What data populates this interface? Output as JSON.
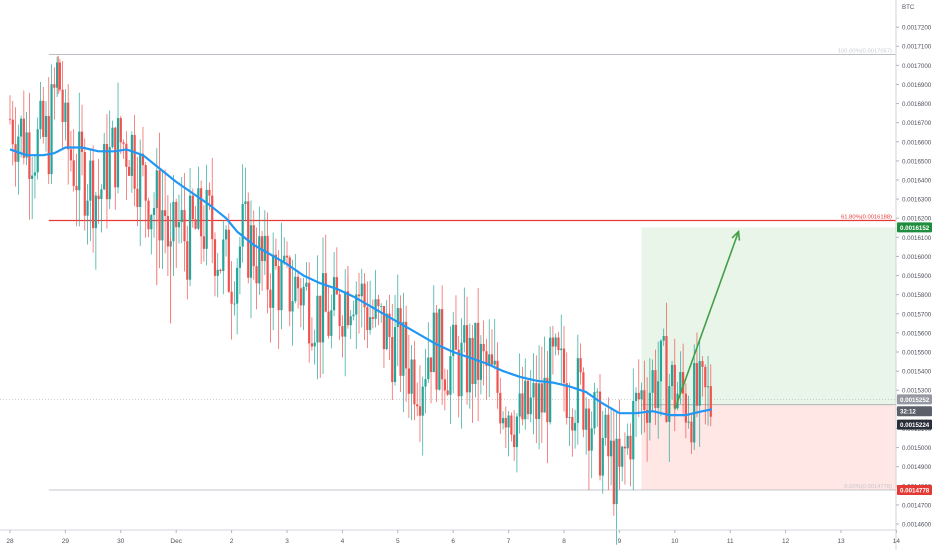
{
  "chart_data": {
    "type": "candlestick",
    "currency_label": "BTC",
    "y_axis": {
      "min": 0.00146,
      "max": 0.00173,
      "ticks": [
        "0.0017200",
        "0.0017100",
        "0.0017000",
        "0.0016900",
        "0.0016800",
        "0.0016700",
        "0.0016600",
        "0.0016500",
        "0.0016400",
        "0.0016300",
        "0.0016200",
        "0.0016100",
        "0.0016000",
        "0.0015900",
        "0.0015800",
        "0.0015700",
        "0.0015600",
        "0.0015500",
        "0.0015400",
        "0.0015300",
        "0.0015200",
        "0.0015100",
        "0.0015000",
        "0.0014900",
        "0.0014800",
        "0.0014700",
        "0.0014600"
      ]
    },
    "x_axis": {
      "min": 0,
      "max": 16.5,
      "ticks": [
        {
          "pos": 0,
          "label": "28"
        },
        {
          "pos": 1,
          "label": "29"
        },
        {
          "pos": 2,
          "label": "30"
        },
        {
          "pos": 3,
          "label": "Dec"
        },
        {
          "pos": 4,
          "label": "2"
        },
        {
          "pos": 5,
          "label": "3"
        },
        {
          "pos": 6,
          "label": "4"
        },
        {
          "pos": 7,
          "label": "5"
        },
        {
          "pos": 8,
          "label": "6"
        },
        {
          "pos": 9,
          "label": "7"
        },
        {
          "pos": 10,
          "label": "8"
        },
        {
          "pos": 11,
          "label": "9"
        },
        {
          "pos": 12,
          "label": "10"
        },
        {
          "pos": 13,
          "label": "11"
        },
        {
          "pos": 14,
          "label": "12"
        },
        {
          "pos": 15,
          "label": "13"
        },
        {
          "pos": 16,
          "label": "14"
        }
      ]
    },
    "fib_levels": [
      {
        "label": "100.00%(0.0017057)",
        "price": 0.0017057,
        "color": "#b2b5be"
      },
      {
        "label": "61.80%(0.0016188)",
        "price": 0.0016188,
        "color": "#e53935"
      },
      {
        "label": "0.00%(0.0014778)",
        "price": 0.0014778,
        "color": "#b2b5be"
      }
    ],
    "price_badges": [
      {
        "text": "0.0016152",
        "price": 0.0016152,
        "color": "#1e8e3e"
      },
      {
        "text": "0.0015252",
        "price": 0.0015252,
        "color": "#9598a1"
      },
      {
        "text": "32:12",
        "price": 0.001519,
        "color": "#5d606b"
      },
      {
        "text": "0.0015224",
        "price": 0.001512,
        "color": "#2a2e39"
      },
      {
        "text": "0.0014778",
        "price": 0.0014778,
        "color": "#e53935"
      }
    ],
    "position": {
      "x_start": 11.4,
      "x_end": 16.0,
      "entry": 0.0015224,
      "target": 0.0016152,
      "stop": 0.0014778
    },
    "arrow": {
      "from": [
        12.0,
        0.00152
      ],
      "to": [
        13.15,
        0.001613
      ]
    },
    "ma_line": [
      [
        0.0,
        0.001656
      ],
      [
        0.3,
        0.001653
      ],
      [
        0.6,
        0.001653
      ],
      [
        0.8,
        0.001654
      ],
      [
        1.0,
        0.001657
      ],
      [
        1.3,
        0.001657
      ],
      [
        1.6,
        0.001655
      ],
      [
        1.9,
        0.001655
      ],
      [
        2.1,
        0.001656
      ],
      [
        2.4,
        0.001653
      ],
      [
        2.7,
        0.001646
      ],
      [
        3.0,
        0.001639
      ],
      [
        3.3,
        0.001633
      ],
      [
        3.6,
        0.001627
      ],
      [
        3.9,
        0.00162
      ],
      [
        4.1,
        0.001613
      ],
      [
        4.4,
        0.001606
      ],
      [
        4.7,
        0.001601
      ],
      [
        5.0,
        0.001596
      ],
      [
        5.3,
        0.00159
      ],
      [
        5.6,
        0.001586
      ],
      [
        5.9,
        0.001583
      ],
      [
        6.2,
        0.001579
      ],
      [
        6.5,
        0.001574
      ],
      [
        6.8,
        0.001569
      ],
      [
        7.1,
        0.001564
      ],
      [
        7.4,
        0.001559
      ],
      [
        7.7,
        0.001554
      ],
      [
        8.0,
        0.00155
      ],
      [
        8.3,
        0.001547
      ],
      [
        8.6,
        0.001544
      ],
      [
        8.9,
        0.00154
      ],
      [
        9.2,
        0.001537
      ],
      [
        9.5,
        0.001535
      ],
      [
        9.8,
        0.001534
      ],
      [
        10.1,
        0.001532
      ],
      [
        10.4,
        0.001529
      ],
      [
        10.7,
        0.001523
      ],
      [
        11.0,
        0.001518
      ],
      [
        11.3,
        0.001518
      ],
      [
        11.6,
        0.001519
      ],
      [
        11.9,
        0.001517
      ],
      [
        12.2,
        0.001517
      ],
      [
        12.5,
        0.001519
      ],
      [
        12.67,
        0.00152
      ]
    ],
    "candle_path": [
      [
        0.0,
        0.001672
      ],
      [
        0.2,
        0.001665
      ],
      [
        0.45,
        0.001658
      ],
      [
        0.7,
        0.001662
      ],
      [
        0.82,
        0.001688
      ],
      [
        0.87,
        0.001699
      ],
      [
        0.93,
        0.00168
      ],
      [
        1.0,
        0.00166
      ],
      [
        1.2,
        0.001645
      ],
      [
        1.4,
        0.001642
      ],
      [
        1.6,
        0.001632
      ],
      [
        1.8,
        0.00165
      ],
      [
        2.0,
        0.00166
      ],
      [
        2.2,
        0.001658
      ],
      [
        2.4,
        0.001638
      ],
      [
        2.6,
        0.001628
      ],
      [
        2.8,
        0.001623
      ],
      [
        2.9,
        0.001595
      ],
      [
        3.0,
        0.001618
      ],
      [
        3.2,
        0.001608
      ],
      [
        3.4,
        0.001615
      ],
      [
        3.6,
        0.001617
      ],
      [
        3.8,
        0.0016
      ],
      [
        4.0,
        0.001592
      ],
      [
        4.2,
        0.00161
      ],
      [
        4.4,
        0.001605
      ],
      [
        4.6,
        0.00159
      ],
      [
        4.8,
        0.00159
      ],
      [
        5.0,
        0.001582
      ],
      [
        5.2,
        0.001585
      ],
      [
        5.4,
        0.001577
      ],
      [
        5.6,
        0.00157
      ],
      [
        5.8,
        0.001566
      ],
      [
        6.0,
        0.001578
      ],
      [
        6.2,
        0.001587
      ],
      [
        6.4,
        0.001575
      ],
      [
        6.6,
        0.001565
      ],
      [
        6.8,
        0.00156
      ],
      [
        7.0,
        0.001552
      ],
      [
        7.2,
        0.001543
      ],
      [
        7.4,
        0.001539
      ],
      [
        7.6,
        0.001556
      ],
      [
        7.8,
        0.001548
      ],
      [
        8.0,
        0.001544
      ],
      [
        8.2,
        0.001543
      ],
      [
        8.4,
        0.001545
      ],
      [
        8.6,
        0.00154
      ],
      [
        8.8,
        0.00153
      ],
      [
        9.0,
        0.001524
      ],
      [
        9.2,
        0.001513
      ],
      [
        9.4,
        0.00152
      ],
      [
        9.6,
        0.001523
      ],
      [
        9.8,
        0.00154
      ],
      [
        10.0,
        0.001535
      ],
      [
        10.2,
        0.00153
      ],
      [
        10.4,
        0.001525
      ],
      [
        10.6,
        0.001508
      ],
      [
        10.8,
        0.001495
      ],
      [
        11.0,
        0.001482
      ],
      [
        11.2,
        0.00151
      ],
      [
        11.35,
        0.001525
      ],
      [
        11.6,
        0.001535
      ],
      [
        11.8,
        0.001537
      ],
      [
        12.0,
        0.00153
      ],
      [
        12.2,
        0.001525
      ],
      [
        12.4,
        0.001523
      ],
      [
        12.6,
        0.001524
      ],
      [
        12.67,
        0.0015224
      ]
    ]
  }
}
